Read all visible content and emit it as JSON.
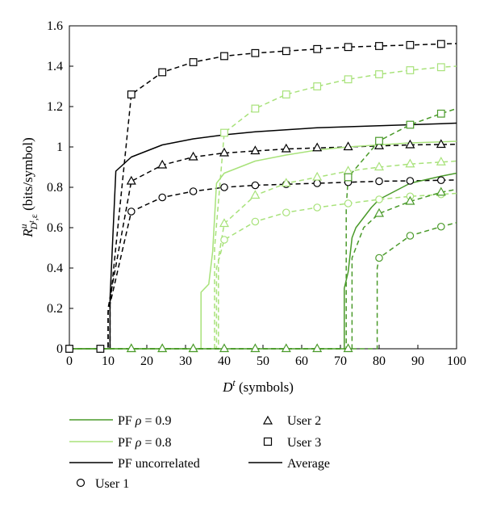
{
  "chart_data": {
    "type": "line",
    "xlabel": {
      "main": "D",
      "sup": "t",
      "rest": " (symbols)"
    },
    "ylabel": {
      "main": "R",
      "sup": "u",
      "sub": "D",
      "subsup": "t",
      "subrest": ",ε",
      "rest": " (bits/symbol)"
    },
    "xlim": [
      0,
      100
    ],
    "ylim": [
      0,
      1.6
    ],
    "xticks": [
      0,
      10,
      20,
      30,
      40,
      50,
      60,
      70,
      80,
      90,
      100
    ],
    "yticks": [
      0,
      0.2,
      0.4,
      0.6,
      0.8,
      1,
      1.2,
      1.4,
      1.6
    ],
    "ytick_labels": [
      "0",
      "0.2",
      "0.4",
      "0.6",
      "0.8",
      "1",
      "1.2",
      "1.4",
      "1.6"
    ],
    "colors": {
      "pf09": "#4a9a2a",
      "pf08": "#a8e27a",
      "uncorrelated": "#000000"
    },
    "legend": {
      "pf09": {
        "prefix": "PF ",
        "rho": "ρ",
        "suffix": " = 0.9"
      },
      "pf08": {
        "prefix": "PF ",
        "rho": "ρ",
        "suffix": " = 0.8"
      },
      "uncorrelated": "PF uncorrelated",
      "user1": "User 1",
      "user2": "User 2",
      "user3": "User 3",
      "average": "Average"
    },
    "series": [
      {
        "group": "uncorrelated",
        "name": "User 3",
        "marker": "square",
        "style": "dashed",
        "x_start": 10.5,
        "y_start": 0.22,
        "x": [
          16,
          24,
          32,
          40,
          48,
          56,
          64,
          72,
          80,
          88,
          96,
          100
        ],
        "y": [
          1.26,
          1.37,
          1.42,
          1.45,
          1.465,
          1.475,
          1.485,
          1.495,
          1.5,
          1.505,
          1.51,
          1.512
        ],
        "marker_x": [
          16,
          24,
          32,
          40,
          48,
          56,
          64,
          72,
          80,
          88,
          96
        ]
      },
      {
        "group": "uncorrelated",
        "name": "Average",
        "marker": "none",
        "style": "solid",
        "x_start": 10.5,
        "y_start": 0.25,
        "x": [
          12,
          16,
          24,
          32,
          40,
          48,
          56,
          64,
          72,
          80,
          88,
          96,
          100
        ],
        "y": [
          0.88,
          0.95,
          1.01,
          1.04,
          1.06,
          1.075,
          1.085,
          1.095,
          1.1,
          1.105,
          1.11,
          1.115,
          1.118
        ],
        "marker_x": []
      },
      {
        "group": "uncorrelated",
        "name": "User 2",
        "marker": "triangle",
        "style": "dashed",
        "x_start": 10,
        "y_start": 0.2,
        "x": [
          16,
          24,
          32,
          40,
          48,
          56,
          64,
          72,
          80,
          88,
          96,
          100
        ],
        "y": [
          0.83,
          0.91,
          0.95,
          0.97,
          0.98,
          0.99,
          0.995,
          1.0,
          1.005,
          1.01,
          1.012,
          1.013
        ],
        "marker_x": [
          16,
          24,
          32,
          40,
          48,
          56,
          64,
          72,
          80,
          88,
          96
        ]
      },
      {
        "group": "uncorrelated",
        "name": "User 1",
        "marker": "circle",
        "style": "dashed",
        "x_start": 10,
        "y_start": 0.18,
        "x": [
          16,
          24,
          32,
          40,
          48,
          56,
          64,
          72,
          80,
          88,
          96,
          100
        ],
        "y": [
          0.68,
          0.75,
          0.78,
          0.8,
          0.81,
          0.815,
          0.82,
          0.825,
          0.83,
          0.832,
          0.835,
          0.836
        ],
        "marker_x": [
          16,
          24,
          32,
          40,
          48,
          56,
          64,
          72,
          80,
          88,
          96
        ]
      },
      {
        "group": "pf08",
        "name": "User 3",
        "marker": "square",
        "style": "dashed",
        "x_start": 37.5,
        "y_start": 0.5,
        "x": [
          40,
          48,
          56,
          64,
          72,
          80,
          88,
          96,
          100
        ],
        "y": [
          1.07,
          1.19,
          1.26,
          1.3,
          1.335,
          1.36,
          1.38,
          1.395,
          1.4
        ],
        "marker_x": [
          40,
          48,
          56,
          64,
          72,
          80,
          88,
          96
        ]
      },
      {
        "group": "pf08",
        "name": "Average",
        "marker": "none",
        "style": "solid",
        "x_start": 34,
        "y_start": 0.28,
        "x": [
          36,
          37,
          38,
          40,
          48,
          56,
          64,
          72,
          80,
          88,
          96,
          100
        ],
        "y": [
          0.32,
          0.48,
          0.82,
          0.87,
          0.93,
          0.96,
          0.985,
          1.0,
          1.01,
          1.02,
          1.025,
          1.028
        ],
        "marker_x": []
      },
      {
        "group": "pf08",
        "name": "User 2",
        "marker": "triangle",
        "style": "dashed",
        "x_start": 38.5,
        "y_start": 0.45,
        "x": [
          40,
          48,
          56,
          64,
          72,
          80,
          88,
          96,
          100
        ],
        "y": [
          0.62,
          0.76,
          0.82,
          0.85,
          0.88,
          0.9,
          0.915,
          0.925,
          0.93
        ],
        "marker_x": [
          40,
          48,
          56,
          64,
          72,
          80,
          88,
          96
        ]
      },
      {
        "group": "pf08",
        "name": "User 1",
        "marker": "circle",
        "style": "dashed",
        "x_start": 38,
        "y_start": 0.4,
        "x": [
          40,
          48,
          56,
          64,
          72,
          80,
          88,
          96,
          100
        ],
        "y": [
          0.54,
          0.63,
          0.675,
          0.7,
          0.72,
          0.74,
          0.755,
          0.765,
          0.77
        ],
        "marker_x": [
          40,
          48,
          56,
          64,
          72,
          80,
          88,
          96
        ]
      },
      {
        "group": "pf09",
        "name": "User 3",
        "marker": "square",
        "style": "dashed",
        "x_start": 71.5,
        "y_start": 0.7,
        "x": [
          72,
          80,
          88,
          96,
          100
        ],
        "y": [
          0.85,
          1.03,
          1.11,
          1.165,
          1.19
        ],
        "marker_x": [
          72,
          80,
          88,
          96
        ]
      },
      {
        "group": "pf09",
        "name": "Average",
        "marker": "none",
        "style": "solid",
        "x_start": 71,
        "y_start": 0.3,
        "x": [
          72,
          73,
          74,
          76,
          78,
          80,
          88,
          96,
          100
        ],
        "y": [
          0.38,
          0.55,
          0.6,
          0.65,
          0.7,
          0.74,
          0.82,
          0.855,
          0.87
        ],
        "marker_x": []
      },
      {
        "group": "pf09",
        "name": "User 2",
        "marker": "triangle",
        "style": "dashed",
        "x_start": 73,
        "y_start": 0.45,
        "x": [
          76,
          80,
          88,
          96,
          100
        ],
        "y": [
          0.6,
          0.67,
          0.73,
          0.775,
          0.79
        ],
        "marker_x": [
          80,
          88,
          96
        ]
      },
      {
        "group": "pf09",
        "name": "User 1",
        "marker": "circle",
        "style": "dashed",
        "x_start": 79.5,
        "y_start": 0.4,
        "x": [
          80,
          88,
          96,
          100
        ],
        "y": [
          0.45,
          0.56,
          0.605,
          0.625
        ],
        "marker_x": [
          80,
          88,
          96
        ]
      }
    ],
    "zero_markers": [
      {
        "group": "uncorrelated",
        "marker": "circle",
        "x": [
          0,
          8
        ]
      },
      {
        "group": "uncorrelated",
        "marker": "square",
        "x": [
          0,
          8
        ]
      },
      {
        "group": "pf08",
        "marker": "triangle",
        "x": [
          16,
          24,
          32
        ]
      },
      {
        "group": "pf09",
        "marker": "triangle",
        "x": [
          16,
          24,
          32,
          40,
          48,
          56,
          64,
          72
        ]
      }
    ]
  }
}
